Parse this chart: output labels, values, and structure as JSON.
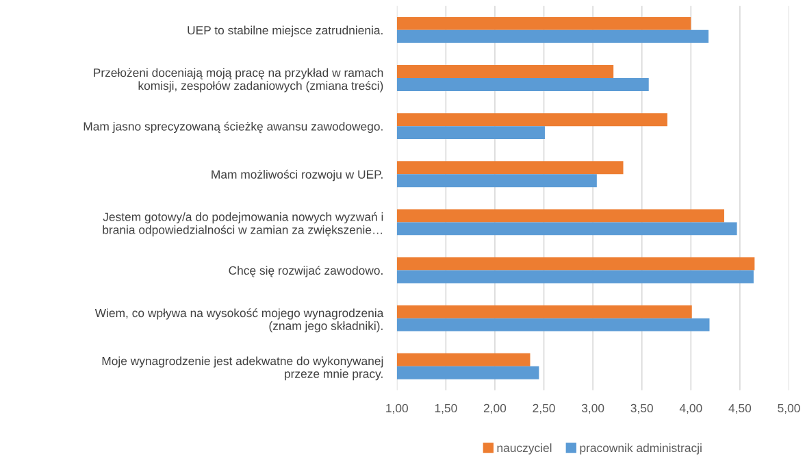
{
  "chart_data": {
    "type": "bar",
    "orientation": "horizontal",
    "categories": [
      "UEP to stabilne miejsce zatrudnienia.",
      "Przełożeni doceniają moją pracę na przykład w ramach\nkomisji, zespołów zadaniowych (zmiana treści)",
      "Mam jasno sprecyzowaną ścieżkę awansu zawodowego.",
      "Mam możliwości rozwoju w UEP.",
      "Jestem gotowy/a do podejmowania nowych wyzwań i\nbrania odpowiedzialności w zamian za zwiększenie…",
      "Chcę się rozwijać zawodowo.",
      "Wiem, co wpływa na wysokość mojego wynagrodzenia\n(znam jego składniki).",
      "Moje wynagrodzenie jest adekwatne do wykonywanej\nprzeze mnie pracy."
    ],
    "series": [
      {
        "name": "nauczyciel",
        "color": "#ed7d31",
        "values": [
          4.0,
          3.21,
          3.76,
          3.31,
          4.34,
          4.65,
          4.01,
          2.36
        ]
      },
      {
        "name": "pracownik administracji",
        "color": "#5b9bd5",
        "values": [
          4.18,
          3.57,
          2.51,
          3.04,
          4.47,
          4.64,
          4.19,
          2.45
        ]
      }
    ],
    "xlim": [
      1,
      5
    ],
    "xticks": [
      {
        "value": 1,
        "label": "1,00"
      },
      {
        "value": 1.5,
        "label": "1,50"
      },
      {
        "value": 2,
        "label": "2,00"
      },
      {
        "value": 2.5,
        "label": "2,50"
      },
      {
        "value": 3,
        "label": "3,00"
      },
      {
        "value": 3.5,
        "label": "3,50"
      },
      {
        "value": 4,
        "label": "4,00"
      },
      {
        "value": 4.5,
        "label": "4,50"
      },
      {
        "value": 5,
        "label": "5,00"
      }
    ],
    "grid": "x",
    "legend": "bottom"
  }
}
